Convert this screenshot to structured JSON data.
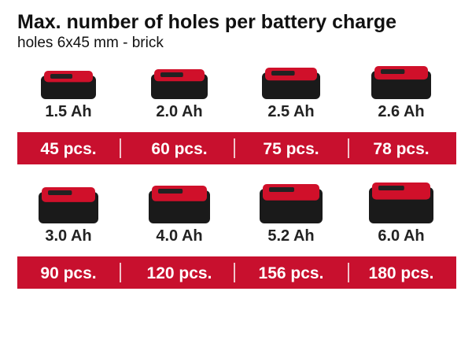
{
  "header": {
    "title": "Max. number of holes per battery charge",
    "subtitle": "holes 6x45 mm - brick"
  },
  "rows": [
    {
      "batteries": [
        {
          "capacity": "1.5 Ah",
          "holes": "45 pcs."
        },
        {
          "capacity": "2.0 Ah",
          "holes": "60 pcs."
        },
        {
          "capacity": "2.5 Ah",
          "holes": "75 pcs."
        },
        {
          "capacity": "2.6 Ah",
          "holes": "78 pcs."
        }
      ]
    },
    {
      "batteries": [
        {
          "capacity": "3.0 Ah",
          "holes": "90 pcs."
        },
        {
          "capacity": "4.0 Ah",
          "holes": "120 pcs."
        },
        {
          "capacity": "5.2 Ah",
          "holes": "156 pcs."
        },
        {
          "capacity": "6.0 Ah",
          "holes": "180 pcs."
        }
      ]
    }
  ]
}
